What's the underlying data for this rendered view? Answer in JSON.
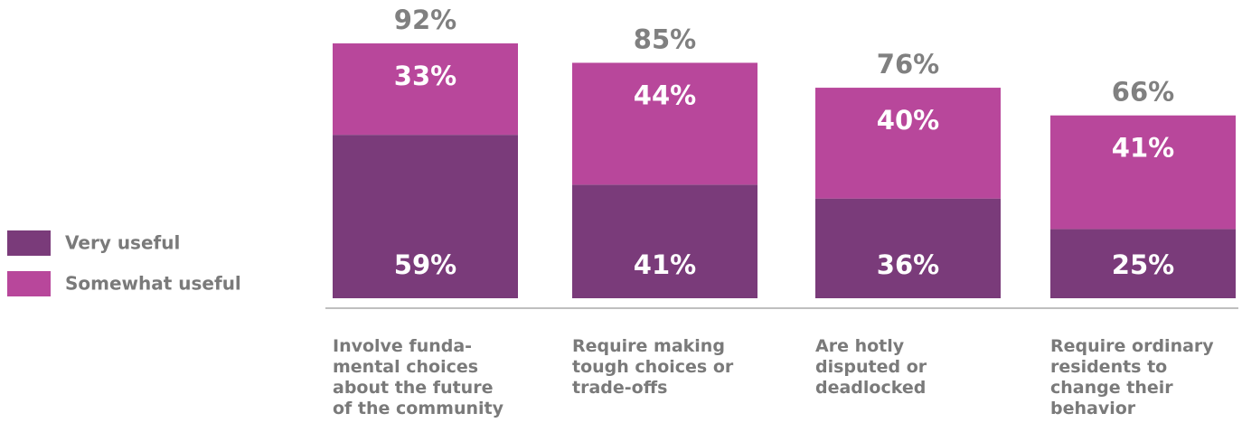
{
  "chart_data": {
    "type": "stacked_bar",
    "categories": [
      "Involve funda-mental choices about the future of the community",
      "Require making tough choices or trade-offs",
      "Are hotly disputed or deadlocked",
      "Require ordinary residents to change their behavior"
    ],
    "series": [
      {
        "name": "Very useful",
        "color": "#7a3b7a",
        "values": [
          59,
          41,
          36,
          25
        ],
        "value_labels": [
          "59%",
          "41%",
          "36%",
          "25%"
        ]
      },
      {
        "name": "Somewhat useful",
        "color": "#b8479b",
        "values": [
          33,
          44,
          40,
          41
        ],
        "value_labels": [
          "33%",
          "44%",
          "40%",
          "41%"
        ]
      }
    ],
    "totals": [
      92,
      85,
      76,
      66
    ],
    "total_labels": [
      "92%",
      "85%",
      "76%",
      "66%"
    ],
    "legend": "left"
  }
}
